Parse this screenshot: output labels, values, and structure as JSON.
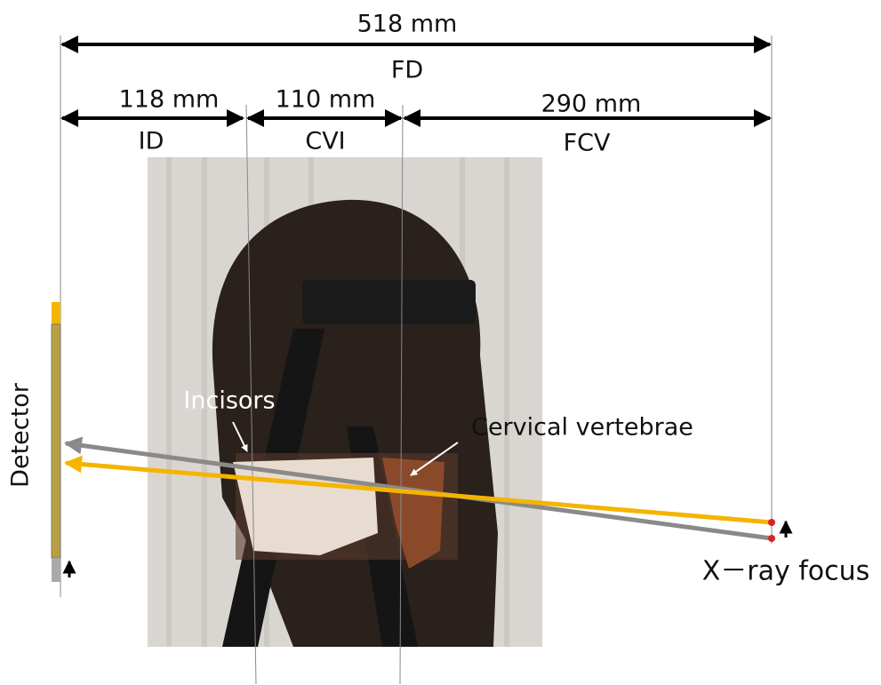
{
  "dimensions": {
    "total": {
      "length": "518 mm",
      "label": "FD"
    },
    "segments": [
      {
        "length": "118 mm",
        "label": "ID"
      },
      {
        "length": "110 mm",
        "label": "CVI"
      },
      {
        "length": "290 mm",
        "label": "FCV"
      }
    ]
  },
  "annotations": {
    "incisors": "Incisors",
    "cervical": "Cervical vertebrae",
    "detector": "Detector",
    "focus": "X－ray focus"
  }
}
